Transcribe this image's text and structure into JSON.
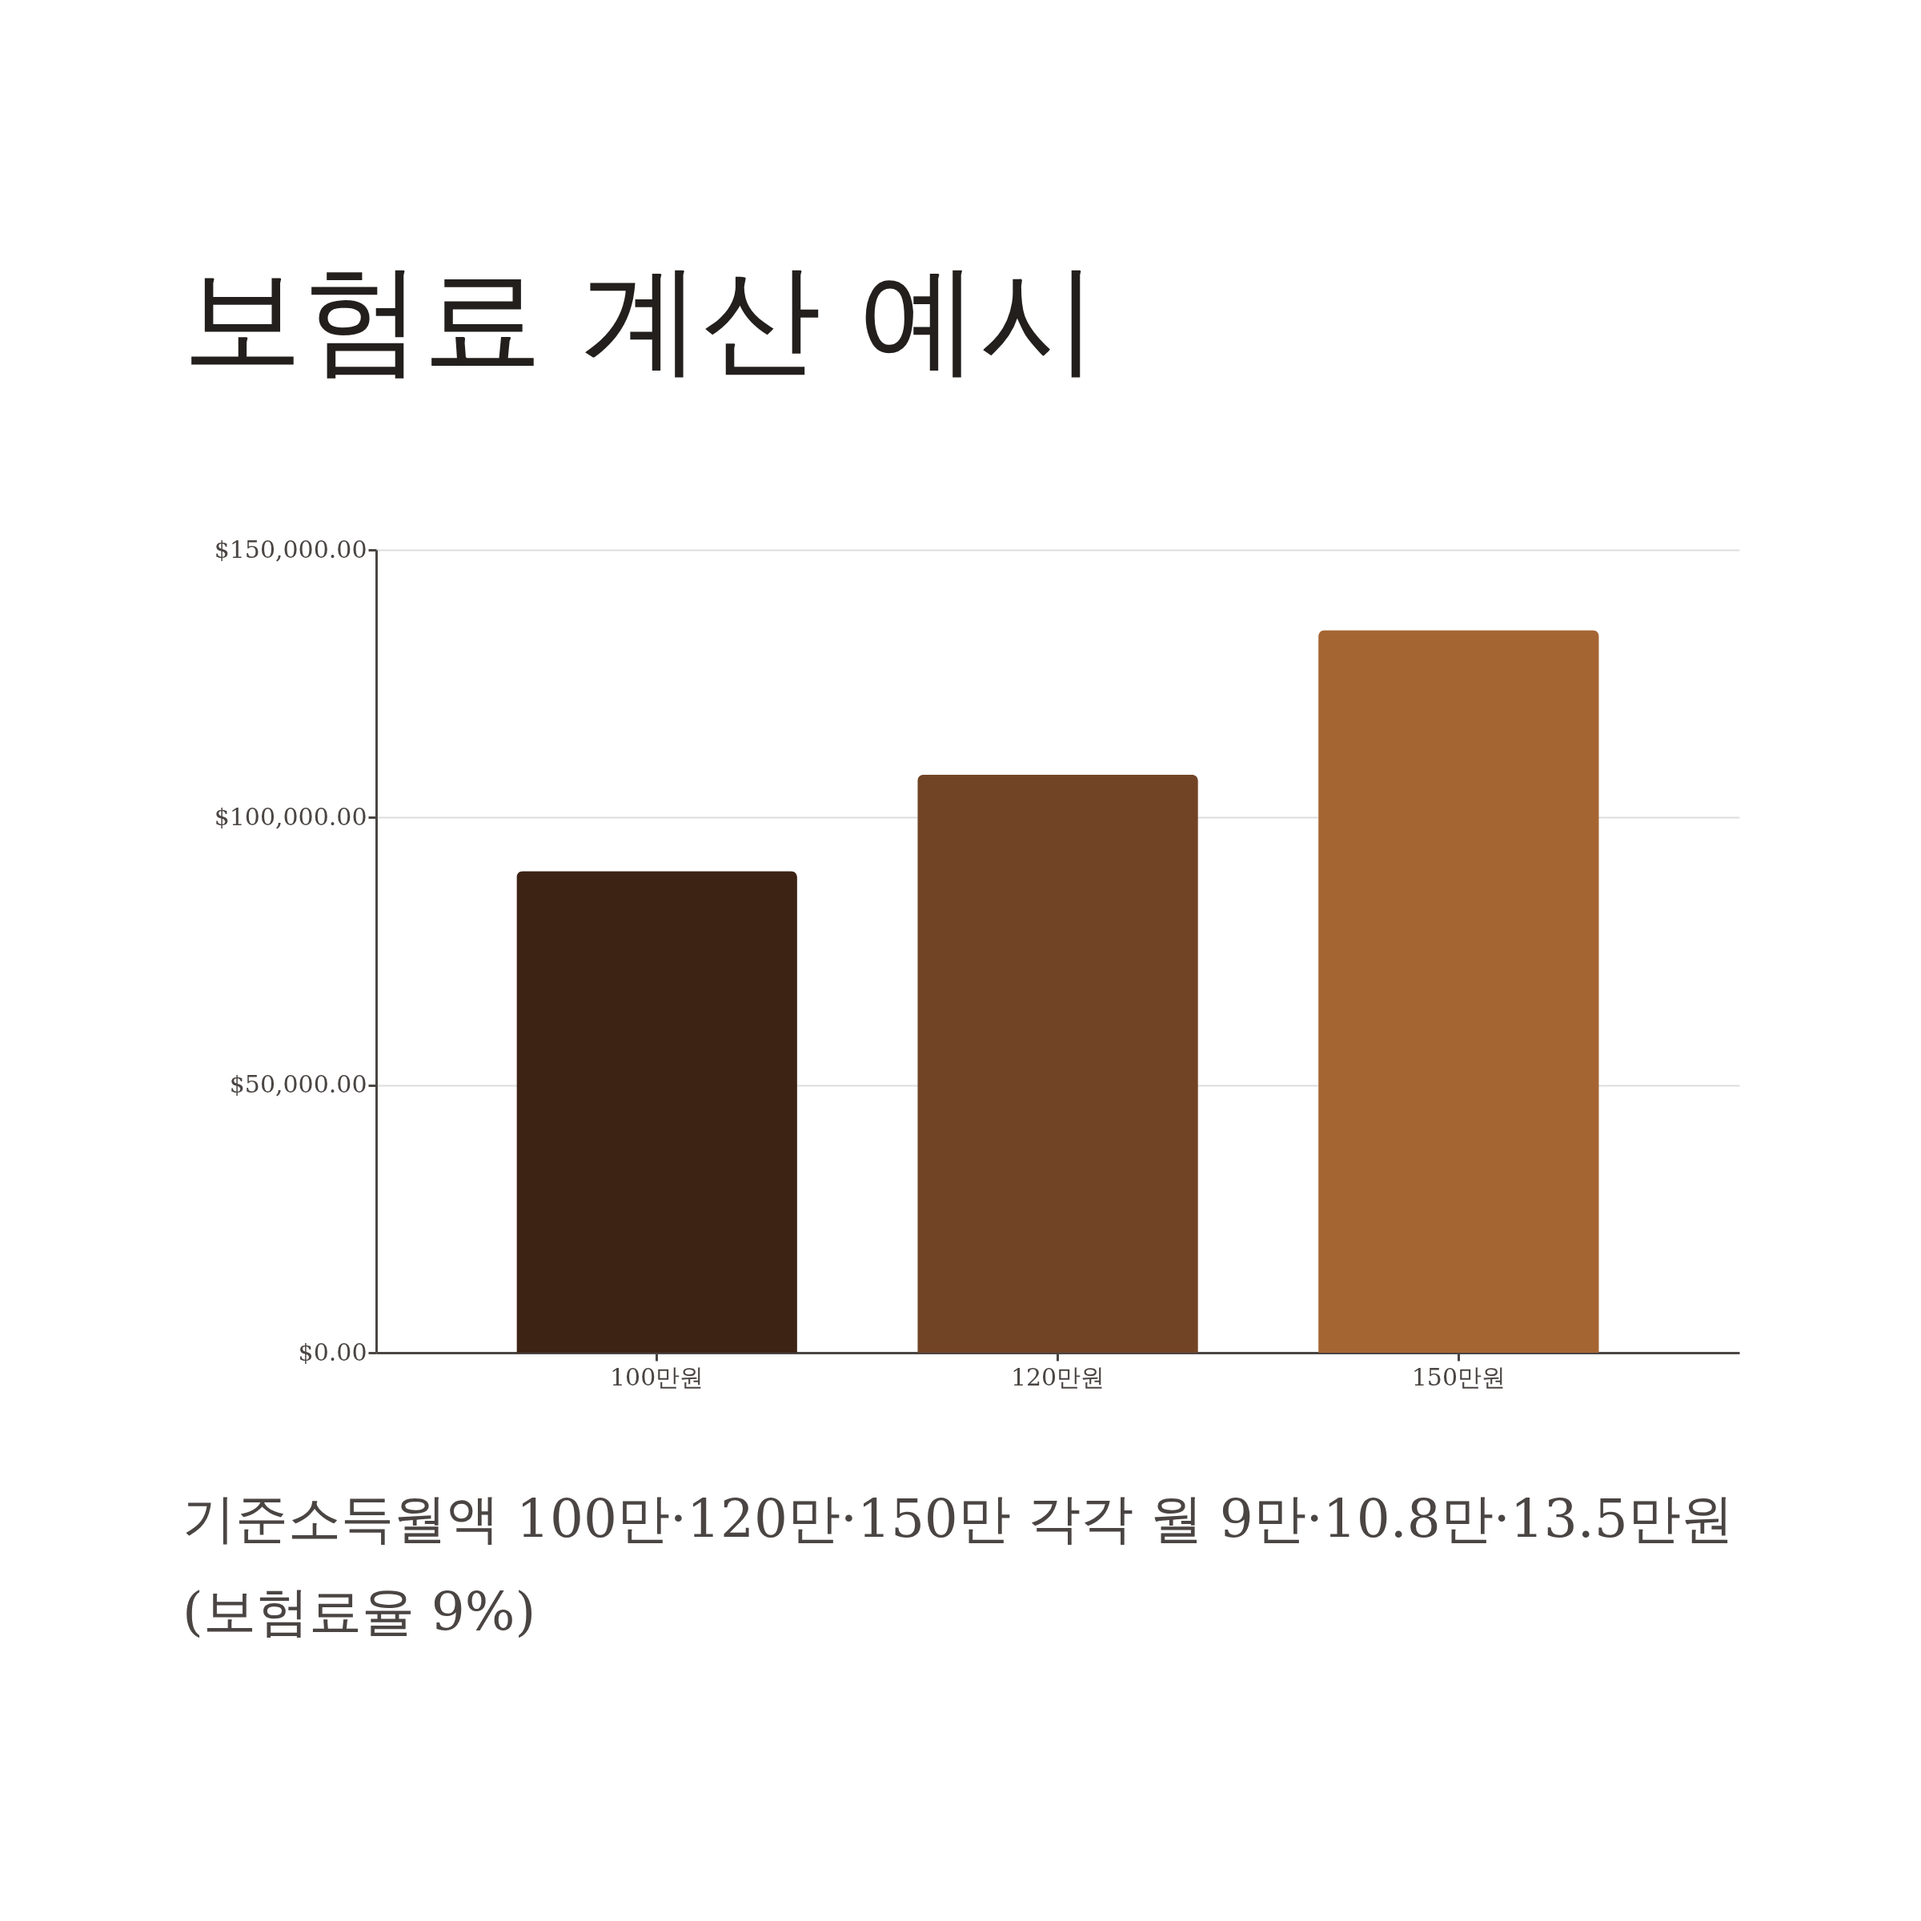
{
  "chart_data": {
    "type": "bar",
    "title": "보험료 계산 예시",
    "categories": [
      "100만원",
      "120만원",
      "150만원"
    ],
    "values": [
      90000,
      108000,
      135000
    ],
    "colors": [
      "#3d2314",
      "#714425",
      "#a56533"
    ],
    "ylim": [
      0,
      150000
    ],
    "yticks": [
      {
        "value": 0,
        "label": "$0.00"
      },
      {
        "value": 50000,
        "label": "$50,000.00"
      },
      {
        "value": 100000,
        "label": "$100,000.00"
      },
      {
        "value": 150000,
        "label": "$150,000.00"
      }
    ],
    "grid": "y",
    "annotations": [
      "기준소득월액 100만·120만·150만 각각 월 9만·10.8만·13.5만원(보험료율 9%)"
    ]
  }
}
